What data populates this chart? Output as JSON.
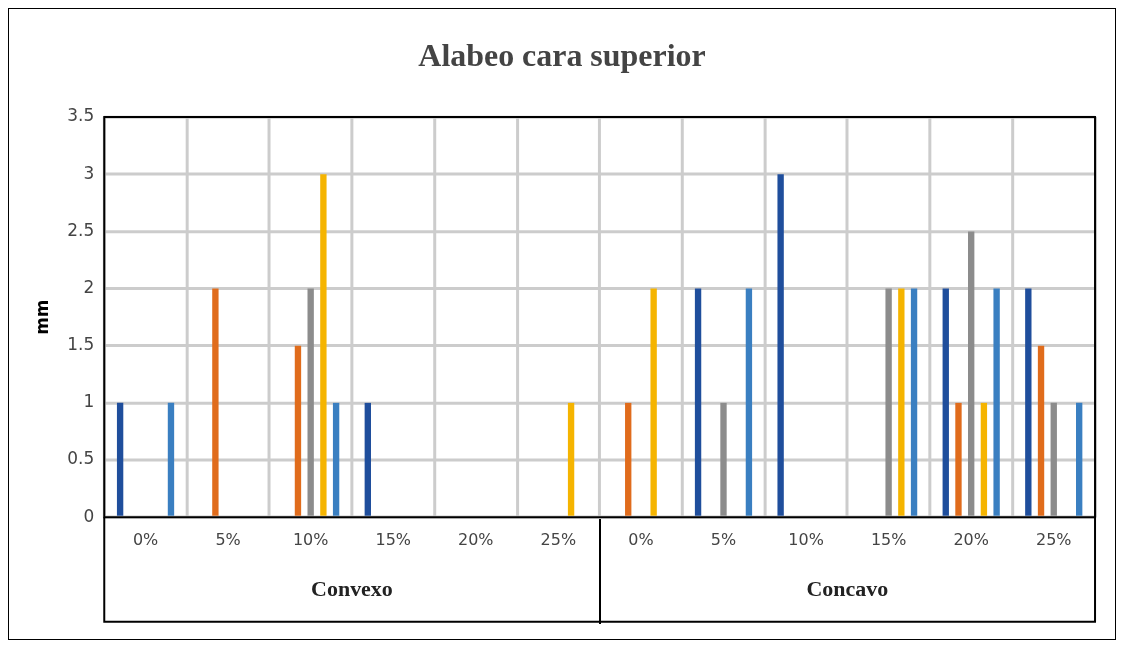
{
  "chart_data": {
    "type": "bar",
    "title": "Alabeo cara superior",
    "ylabel": "mm",
    "categories": [
      "0%",
      "5%",
      "10%",
      "15%",
      "20%",
      "25%",
      "0%",
      "5%",
      "10%",
      "15%",
      "20%",
      "25%"
    ],
    "annotations": [
      "Convexo",
      "Concavo"
    ],
    "series": [
      {
        "color": "#1f4e9c",
        "values": [
          1,
          null,
          null,
          1,
          null,
          null,
          null,
          2,
          3,
          null,
          2,
          2
        ]
      },
      {
        "color": "#e06c1c",
        "values": [
          null,
          2,
          1.5,
          null,
          null,
          null,
          1,
          null,
          null,
          null,
          1,
          1.5
        ]
      },
      {
        "color": "#8c8c8c",
        "values": [
          null,
          null,
          2,
          null,
          null,
          null,
          null,
          1,
          null,
          2,
          2.5,
          1
        ]
      },
      {
        "color": "#f5b400",
        "values": [
          null,
          null,
          3,
          null,
          null,
          1,
          2,
          null,
          null,
          2,
          1,
          null
        ]
      },
      {
        "color": "#3a7fc1",
        "values": [
          1,
          null,
          1,
          null,
          null,
          null,
          null,
          2,
          null,
          2,
          2,
          1
        ]
      }
    ],
    "ylim": [
      0,
      3.5
    ],
    "yticks": [
      0,
      0.5,
      1,
      1.5,
      2,
      2.5,
      3,
      3.5
    ],
    "grid": true,
    "legend": false
  }
}
